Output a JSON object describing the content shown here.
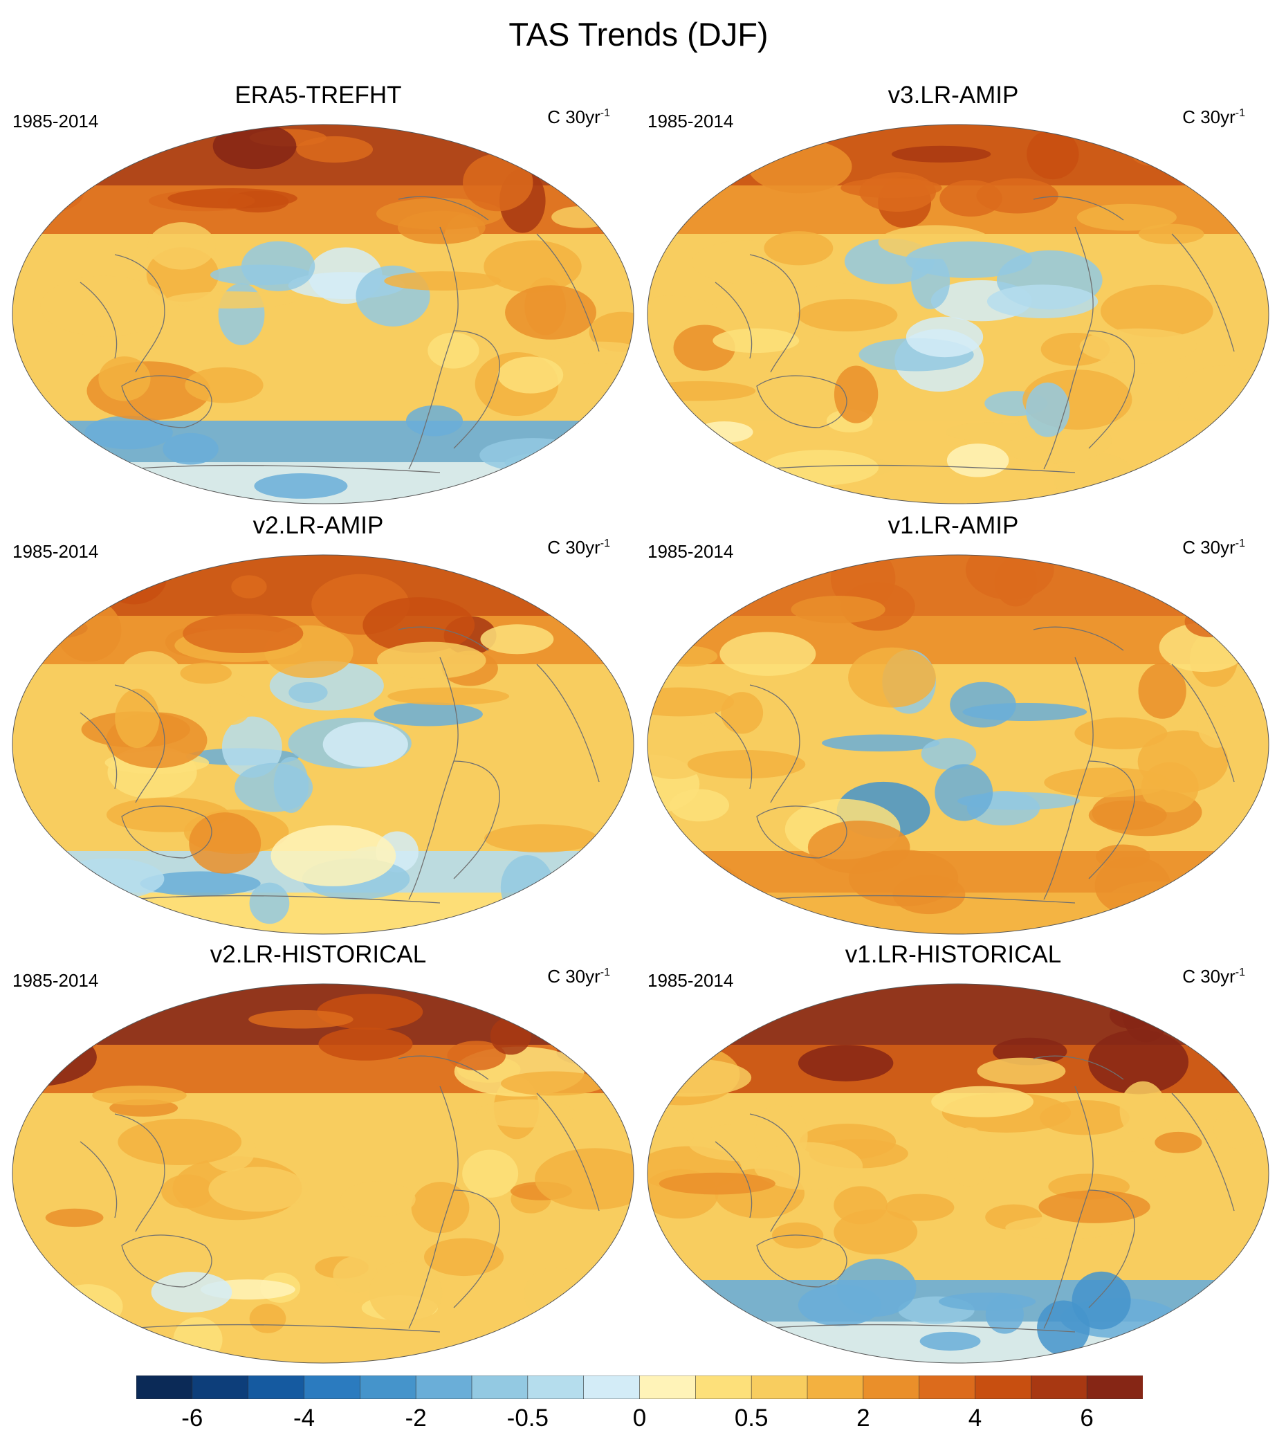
{
  "figure": {
    "title": "TAS Trends (DJF)"
  },
  "panels": [
    {
      "title": "ERA5-TREFHT",
      "period": "1985-2014",
      "units": "C 30yr",
      "units_exp": "-1",
      "arctic": 5.5,
      "pacific": -0.5,
      "southern": -1.2
    },
    {
      "title": "v3.LR-AMIP",
      "period": "1985-2014",
      "units": "C 30yr",
      "units_exp": "-1",
      "arctic": 4.5,
      "pacific": -0.5,
      "southern": 0.5
    },
    {
      "title": "v2.LR-AMIP",
      "period": "1985-2014",
      "units": "C 30yr",
      "units_exp": "-1",
      "arctic": 4.5,
      "pacific": -0.8,
      "southern": -0.5
    },
    {
      "title": "v1.LR-AMIP",
      "period": "1985-2014",
      "units": "C 30yr",
      "units_exp": "-1",
      "arctic": 3.5,
      "pacific": -1.2,
      "southern": 2.0
    },
    {
      "title": "v2.LR-HISTORICAL",
      "period": "1985-2014",
      "units": "C 30yr",
      "units_exp": "-1",
      "arctic": 6.5,
      "pacific": 1.0,
      "southern": 0.5
    },
    {
      "title": "v1.LR-HISTORICAL",
      "period": "1985-2014",
      "units": "C 30yr",
      "units_exp": "-1",
      "arctic": 7.0,
      "pacific": 1.5,
      "southern": -1.5
    }
  ],
  "chart_data": {
    "type": "heatmap",
    "title": "TAS Trends (DJF)",
    "variable": "TAS",
    "season": "DJF",
    "period": "1985-2014",
    "units": "C 30yr-1",
    "colorbar": {
      "colors": [
        "#0b2a57",
        "#0d3e7a",
        "#155aa0",
        "#2b7bbf",
        "#4594cb",
        "#6aaed8",
        "#93c9e2",
        "#b5dded",
        "#d3ecf7",
        "#fff3b8",
        "#fde07a",
        "#f8cd5f",
        "#f3b140",
        "#ea8f2a",
        "#dc6b1c",
        "#c84f10",
        "#a83812",
        "#862615"
      ],
      "tick_labels": [
        "-6",
        "-4",
        "-2",
        "-0.5",
        "0",
        "0.5",
        "2",
        "4",
        "6"
      ],
      "tick_bins": [
        1,
        3,
        5,
        7,
        9,
        11,
        13,
        15,
        17
      ]
    }
  }
}
